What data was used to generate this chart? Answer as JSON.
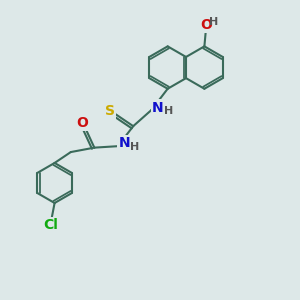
{
  "background_color": "#dde8e8",
  "bond_color": "#3a6a5a",
  "bond_width": 1.5,
  "atom_colors": {
    "N": "#1010cc",
    "O": "#cc1010",
    "S": "#ccaa00",
    "Cl": "#10aa10",
    "H": "#555555"
  },
  "font_size": 9,
  "fig_size": [
    3.0,
    3.0
  ],
  "dpi": 100
}
